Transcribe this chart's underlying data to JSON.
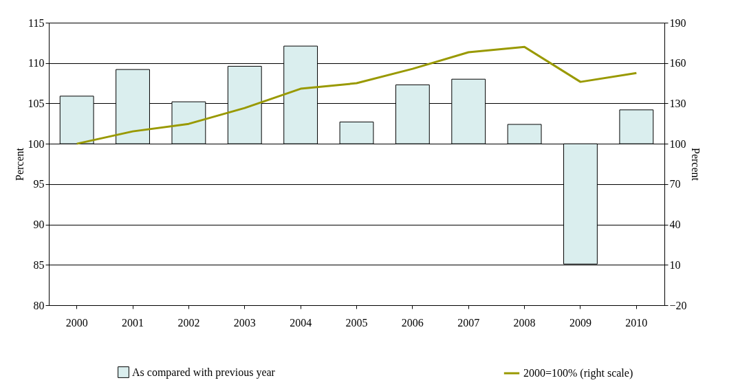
{
  "chart_data": {
    "type": "bar",
    "categories": [
      "2000",
      "2001",
      "2002",
      "2003",
      "2004",
      "2005",
      "2006",
      "2007",
      "2008",
      "2009",
      "2010"
    ],
    "ylabel": "Percent",
    "y2label": "Percent",
    "series": [
      {
        "name": "As compared with previous year",
        "color": "#daeeee",
        "base": [
          100,
          100,
          100,
          100,
          100,
          100,
          100,
          100,
          100,
          100,
          100
        ],
        "values": [
          5.9,
          9.2,
          5.2,
          9.6,
          12.1,
          2.7,
          7.3,
          8.0,
          2.4,
          -14.9,
          4.2
        ]
      },
      {
        "name": "2000=100% (right scale)",
        "type": "line",
        "axis": "y2",
        "color": "#999900",
        "values": [
          100,
          109.2,
          114.8,
          126.6,
          140.9,
          145.0,
          155.7,
          168.0,
          172.0,
          146.0,
          152.6
        ]
      }
    ],
    "ylim": [
      80,
      115
    ],
    "yticks": [
      80,
      85,
      90,
      95,
      100,
      105,
      110,
      115
    ],
    "y2lim": [
      -20,
      190
    ],
    "y2ticks": [
      -20,
      10,
      40,
      70,
      100,
      130,
      160,
      190
    ],
    "grid": "y",
    "legend": "bottom",
    "marker": "none",
    "line_style": "solid"
  }
}
